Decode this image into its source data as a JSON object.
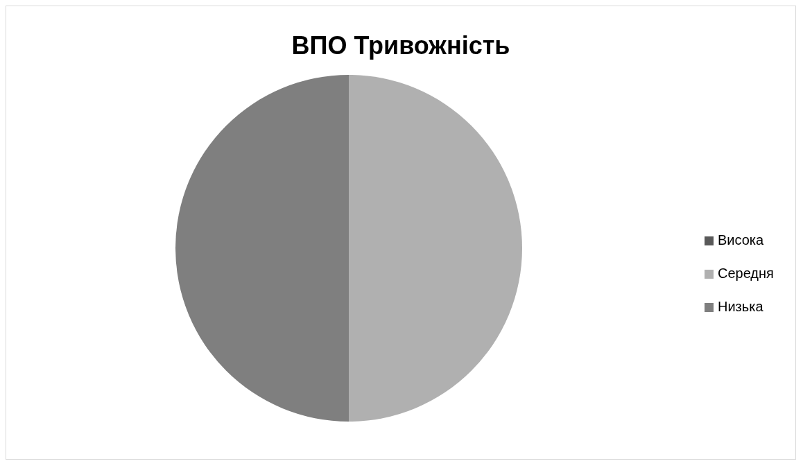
{
  "chart_data": {
    "type": "pie",
    "title": "ВПО Тривожність",
    "categories": [
      "Висока",
      "Середня",
      "Низька"
    ],
    "values": [
      0,
      50,
      50
    ],
    "colors": [
      "#595959",
      "#b0b0b0",
      "#7f7f7f"
    ],
    "legend": "right"
  }
}
